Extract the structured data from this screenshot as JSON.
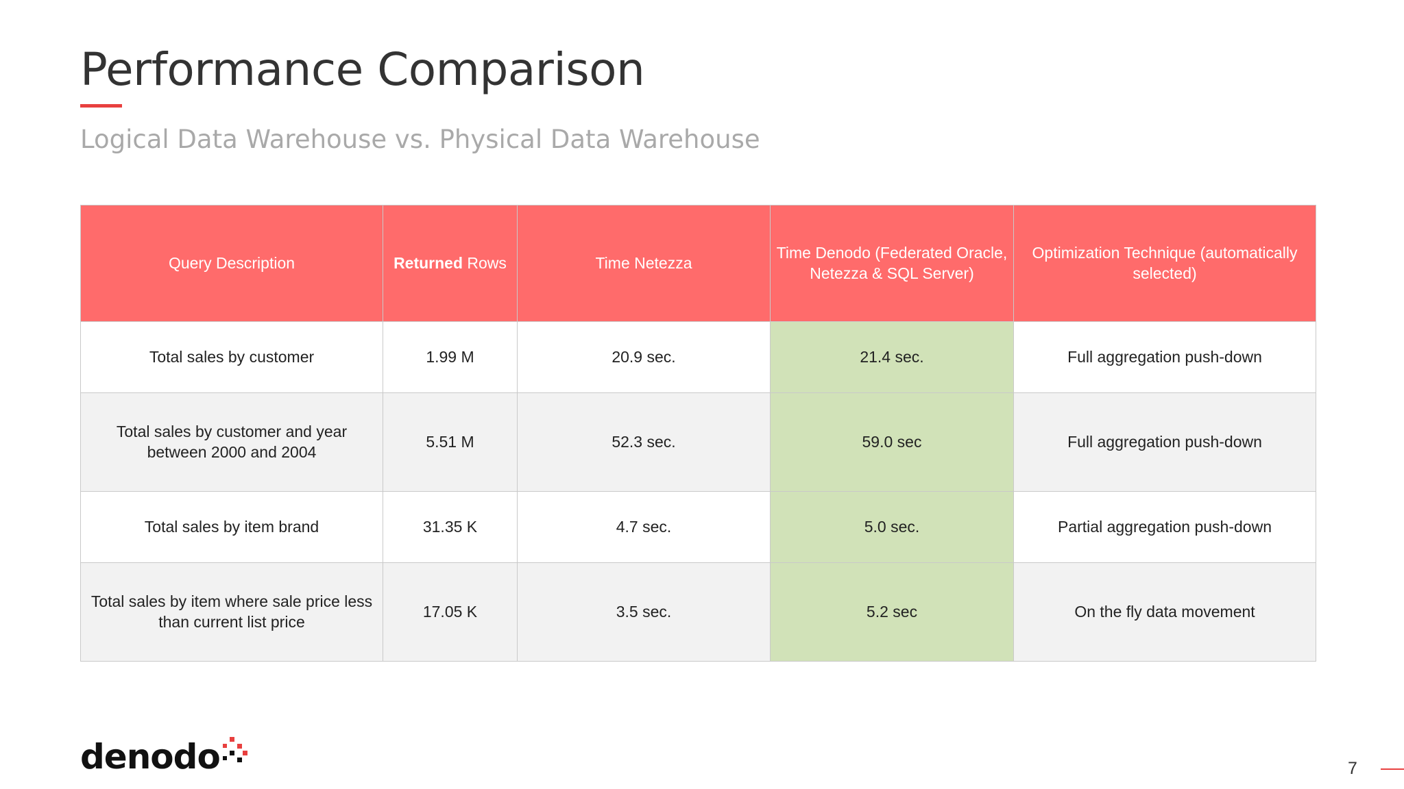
{
  "slide": {
    "title": "Performance Comparison",
    "subtitle": "Logical Data Warehouse vs. Physical Data Warehouse",
    "page_number": "7",
    "logo_text": "denodo"
  },
  "table": {
    "headers": {
      "query_description": "Query Description",
      "returned_rows_bold": "Returned",
      "returned_rows_rest": " Rows",
      "time_netezza": "Time Netezza",
      "time_denodo": "Time Denodo (Federated Oracle, Netezza & SQL Server)",
      "optimization": "Optimization Technique (automatically selected)"
    },
    "rows": [
      {
        "query": "Total sales by customer",
        "rows": "1.99 M",
        "netezza": "20.9 sec.",
        "denodo": "21.4 sec.",
        "technique": "Full aggregation push-down"
      },
      {
        "query": "Total sales by customer and year between 2000 and 2004",
        "rows": "5.51 M",
        "netezza": "52.3 sec.",
        "denodo": "59.0 sec",
        "technique": "Full aggregation push-down"
      },
      {
        "query": "Total sales by item brand",
        "rows": "31.35 K",
        "netezza": "4.7 sec.",
        "denodo": "5.0 sec.",
        "technique": "Partial aggregation push-down"
      },
      {
        "query": "Total sales by item where sale price less than current list price",
        "rows": "17.05 K",
        "netezza": "3.5 sec.",
        "denodo": "5.2 sec",
        "technique": "On the fly data movement"
      }
    ]
  },
  "colors": {
    "header_bg": "#ff6b6b",
    "highlight_bg": "#d1e2b8",
    "accent": "#e8403f"
  }
}
